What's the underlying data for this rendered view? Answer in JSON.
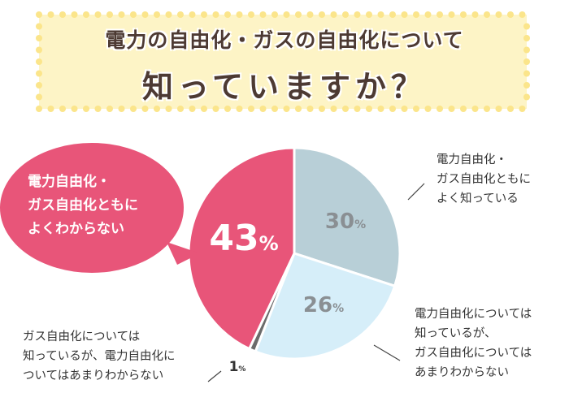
{
  "title": {
    "line1": "電力の自由化・ガスの自由化について",
    "line2": "知っていますか？"
  },
  "colors": {
    "banner_fill": "#fdf4c6",
    "banner_dots": "#fbe58b",
    "text_dark": "#4d3a33"
  },
  "chart_data": {
    "type": "pie",
    "title": "電力の自由化・ガスの自由化について知っていますか？",
    "slices": [
      {
        "label_lines": [
          "電力自由化・",
          "ガス自由化ともに",
          "よく知っている"
        ],
        "value": 30,
        "value_label": "30",
        "color": "#b8cfd7",
        "text_color": "#8a8f93"
      },
      {
        "label_lines": [
          "電力自由化については",
          "知っているが、",
          "ガス自由化については",
          "あまりわからない"
        ],
        "value": 26,
        "value_label": "26",
        "color": "#d6eef9",
        "text_color": "#8a8f93"
      },
      {
        "label_lines": [
          "ガス自由化については",
          "知っているが、電力自由化に",
          "ついてはあまりわからない"
        ],
        "value": 1,
        "value_label": "1",
        "color": "#6b6b6b",
        "text_color": "#333333"
      },
      {
        "label_lines": [
          "電力自由化・",
          "ガス自由化ともに",
          "よくわからない"
        ],
        "value": 43,
        "value_label": "43",
        "color": "#e85579",
        "text_color": "#ffffff"
      }
    ],
    "unit": "%"
  }
}
